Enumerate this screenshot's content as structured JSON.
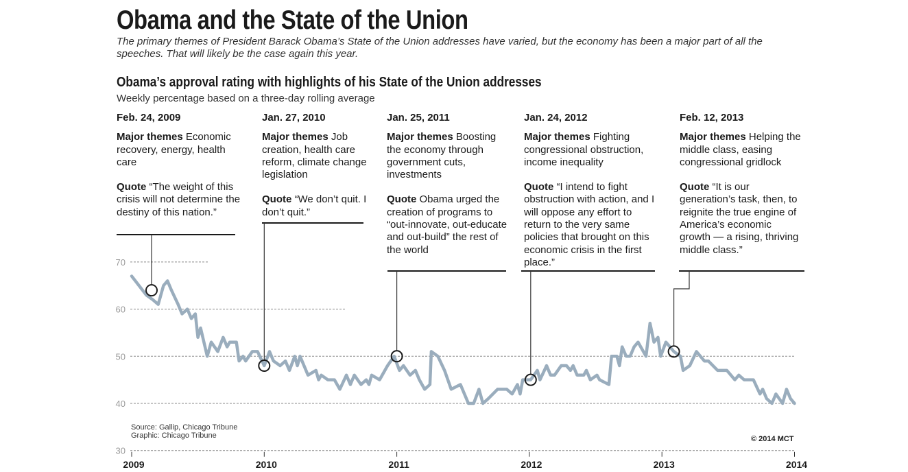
{
  "title": "Obama and the State of the Union",
  "subtitle": "The primary themes of President Barack Obama’s State of the Union addresses have varied, but the economy has been a major part of all the speeches. That will likely be the case again this year.",
  "chart_heading": "Obama’s approval rating with highlights of his State of the Union addresses",
  "chart_subheading": "Weekly percentage based on a three-day rolling average",
  "annotations": [
    {
      "date": "Feb. 24, 2009",
      "themes_label": "Major themes",
      "themes": "Economic recovery, energy, health care",
      "quote_label": "Quote",
      "quote": "“The weight of this crisis will not determine the destiny of this nation.”"
    },
    {
      "date": "Jan. 27, 2010",
      "themes_label": "Major themes",
      "themes": "Job creation, health care reform, climate change legislation",
      "quote_label": "Quote",
      "quote": "“We don’t quit. I don’t quit.”"
    },
    {
      "date": "Jan. 25, 2011",
      "themes_label": "Major themes",
      "themes": "Boosting the economy through government cuts, investments",
      "quote_label": "Quote",
      "quote": "Obama urged the creation of programs to “out-innovate, out-educate and out-build” the rest of the world"
    },
    {
      "date": "Jan. 24, 2012",
      "themes_label": "Major themes",
      "themes": "Fighting congressional obstruction, income inequality",
      "quote_label": "Quote",
      "quote": "“I intend to fight obstruction with action, and I will oppose any effort to return to the very same policies that brought on this economic crisis in the first place.”"
    },
    {
      "date": "Feb. 12, 2013",
      "themes_label": "Major themes",
      "themes": "Helping the middle class, easing congressional gridlock",
      "quote_label": "Quote",
      "quote": "“It is our generation’s task, then, to reignite the true engine of America’s economic growth — a rising, thriving middle class.”"
    }
  ],
  "source": "Source: Gallip, Chicago Tribune",
  "graphic": "Graphic: Chicago Tribune",
  "copyright": "© 2014 MCT",
  "colors": {
    "line": "#9aadbd",
    "grid": "#888888",
    "tick_label": "#9a9a9a",
    "marker": "#1a1a1a"
  },
  "chart_data": {
    "type": "line",
    "xlim": [
      2009,
      2014
    ],
    "ylim": [
      30,
      70
    ],
    "x_ticks": [
      "2009",
      "2010",
      "2011",
      "2012",
      "2013",
      "2014"
    ],
    "y_ticks": [
      "30",
      "40",
      "50",
      "60",
      "70"
    ],
    "grid": "horizontal dashed",
    "series": [
      {
        "x": [
          2009.0,
          2009.11,
          2009.16,
          2009.2,
          2009.24,
          2009.27,
          2009.3,
          2009.35,
          2009.38,
          2009.42,
          2009.45,
          2009.48,
          2009.5,
          2009.52,
          2009.57,
          2009.6,
          2009.65,
          2009.69,
          2009.72,
          2009.74,
          2009.79,
          2009.81,
          2009.84,
          2009.86,
          2009.91,
          2009.95,
          2010.0,
          2010.04,
          2010.07,
          2010.12,
          2010.16,
          2010.19,
          2010.23,
          2010.25,
          2010.27,
          2010.33,
          2010.39,
          2010.41,
          2010.43,
          2010.48,
          2010.53,
          2010.57,
          2010.62,
          2010.65,
          2010.68,
          2010.73,
          2010.77,
          2010.79,
          2010.81,
          2010.87,
          2010.93,
          2010.98,
          2011.02,
          2011.05,
          2011.1,
          2011.14,
          2011.17,
          2011.21,
          2011.25,
          2011.26,
          2011.31,
          2011.36,
          2011.41,
          2011.48,
          2011.54,
          2011.58,
          2011.62,
          2011.65,
          2011.69,
          2011.76,
          2011.83,
          2011.87,
          2011.91,
          2011.93,
          2011.95,
          2012.01,
          2012.06,
          2012.08,
          2012.13,
          2012.16,
          2012.19,
          2012.24,
          2012.28,
          2012.31,
          2012.33,
          2012.36,
          2012.41,
          2012.43,
          2012.46,
          2012.51,
          2012.53,
          2012.6,
          2012.62,
          2012.66,
          2012.68,
          2012.7,
          2012.73,
          2012.76,
          2012.79,
          2012.82,
          2012.88,
          2012.91,
          2012.94,
          2012.97,
          2012.99,
          2013.03,
          2013.09,
          2013.14,
          2013.16,
          2013.21,
          2013.26,
          2013.32,
          2013.35,
          2013.42,
          2013.45,
          2013.49,
          2013.55,
          2013.58,
          2013.62,
          2013.69,
          2013.74,
          2013.76,
          2013.79,
          2013.83,
          2013.86,
          2013.91,
          2013.94,
          2013.97,
          2014.0
        ],
        "values": [
          67,
          63,
          62,
          61,
          65,
          66,
          64,
          61,
          59,
          60,
          58,
          59,
          54,
          56,
          50,
          53,
          51,
          54,
          52,
          53,
          53,
          49,
          50,
          49,
          51,
          51,
          48,
          51,
          49,
          48,
          49,
          47,
          50,
          48,
          50,
          46,
          47,
          45,
          46,
          45,
          45,
          43,
          46,
          44,
          46,
          44,
          45,
          44,
          46,
          45,
          48,
          50,
          47,
          48,
          46,
          47,
          45,
          43,
          44,
          51,
          50,
          47,
          43,
          44,
          40,
          40,
          43,
          40,
          41,
          43,
          43,
          42,
          44,
          42,
          45,
          45,
          47,
          45,
          48,
          46,
          46,
          48,
          48,
          47,
          48,
          46,
          46,
          47,
          45,
          46,
          45,
          44,
          50,
          50,
          48,
          52,
          50,
          50,
          52,
          53,
          50,
          57,
          53,
          54,
          50,
          53,
          51,
          50,
          47,
          48,
          51,
          49,
          49,
          47,
          47,
          47,
          45,
          46,
          45,
          45,
          42,
          43,
          41,
          40,
          42,
          40,
          43,
          41,
          40
        ]
      }
    ],
    "markers": [
      {
        "label": "Feb. 24, 2009",
        "x": 2009.15,
        "y": 64
      },
      {
        "label": "Jan. 27, 2010",
        "x": 2010.0,
        "y": 48
      },
      {
        "label": "Jan. 25, 2011",
        "x": 2011.0,
        "y": 50
      },
      {
        "label": "Jan. 24, 2012",
        "x": 2012.01,
        "y": 45
      },
      {
        "label": "Feb. 12, 2013",
        "x": 2013.09,
        "y": 51
      }
    ]
  }
}
